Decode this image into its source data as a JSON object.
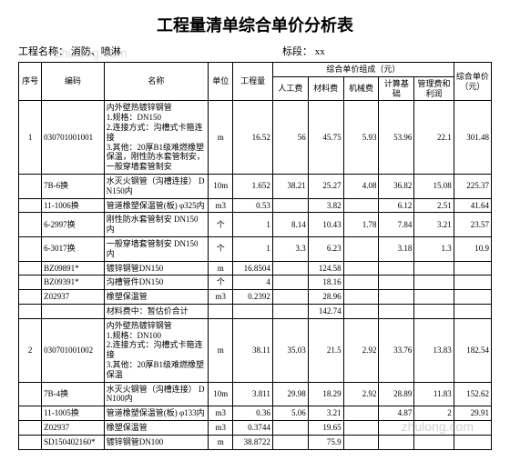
{
  "title": "工程量清单综合单价分析表",
  "project_label": "工程名称：",
  "project_name": "消防、喷淋",
  "section_label": "标段：",
  "section_value": "xx",
  "columns": {
    "seq": "序号",
    "code": "编码",
    "name": "名称",
    "unit": "单位",
    "qty": "工程量",
    "group": "综合单价组成（元）",
    "labor": "人工费",
    "material": "材料费",
    "machine": "机械费",
    "calc": "计算基础",
    "mgmt": "管理费和利润",
    "total": "综合单价（元）"
  },
  "rows": [
    {
      "seq": "1",
      "code": "030701001001",
      "name": "内外壁热镀锌钢管\n1.规格：DN150\n2.连接方式：沟槽式卡箍连接\n3.其他：20厚B1级难燃橡塑保温，刚性防水套管制安，一般穿墙套管制安",
      "unit": "m",
      "qty": "16.52",
      "labor": "56",
      "material": "45.75",
      "machine": "5.93",
      "calc": "53.96",
      "mgmt": "22.1",
      "total": "301.48"
    },
    {
      "seq": "",
      "code": "7B-6换",
      "name": "水灭火钢管（沟槽连接） DN150内",
      "unit": "10m",
      "qty": "1.652",
      "labor": "38.21",
      "material": "25.27",
      "machine": "4.08",
      "calc": "36.82",
      "mgmt": "15.08",
      "total": "225.37"
    },
    {
      "seq": "",
      "code": "11-1006换",
      "name": "管道橡塑保温管(板) φ325内",
      "unit": "m3",
      "qty": "0.53",
      "labor": "",
      "material": "3.82",
      "machine": "",
      "calc": "6.12",
      "mgmt": "2.51",
      "total": "41.64"
    },
    {
      "seq": "",
      "code": "6-2997换",
      "name": "刚性防水套管制安 DN150内",
      "unit": "个",
      "qty": "1",
      "labor": "8.14",
      "material": "10.43",
      "machine": "1.78",
      "calc": "7.84",
      "mgmt": "3.21",
      "total": "23.57"
    },
    {
      "seq": "",
      "code": "6-3017换",
      "name": "一般穿墙套管制安 DN150内",
      "unit": "个",
      "qty": "1",
      "labor": "3.3",
      "material": "6.23",
      "machine": "",
      "calc": "3.18",
      "mgmt": "1.3",
      "total": "10.9"
    },
    {
      "seq": "",
      "code": "BZ09891*",
      "name": "镀锌钢管DN150",
      "unit": "m",
      "qty": "16.8504",
      "labor": "",
      "material": "124.58",
      "machine": "",
      "calc": "",
      "mgmt": "",
      "total": ""
    },
    {
      "seq": "",
      "code": "BZ09391*",
      "name": "沟槽管件DN150",
      "unit": "个",
      "qty": "4",
      "labor": "",
      "material": "18.16",
      "machine": "",
      "calc": "",
      "mgmt": "",
      "total": ""
    },
    {
      "seq": "",
      "code": "Z02937",
      "name": "橡塑保温管",
      "unit": "m3",
      "qty": "0.2392",
      "labor": "",
      "material": "28.96",
      "machine": "",
      "calc": "",
      "mgmt": "",
      "total": ""
    },
    {
      "seq": "",
      "code": "",
      "name": "材料费中：暂估价合计",
      "unit": "",
      "qty": "",
      "labor": "",
      "material": "142.74",
      "machine": "",
      "calc": "",
      "mgmt": "",
      "total": ""
    },
    {
      "seq": "2",
      "code": "030701001002",
      "name": "内外壁热镀锌钢管\n1.规格：DN100\n2.连接方式：沟槽式卡箍连接\n3.其他：20厚B1级难燃橡塑保温",
      "unit": "m",
      "qty": "38.11",
      "labor": "35.03",
      "material": "21.5",
      "machine": "2.92",
      "calc": "33.76",
      "mgmt": "13.83",
      "total": "182.54"
    },
    {
      "seq": "",
      "code": "7B-4换",
      "name": "水灭火钢管（沟槽连接） DN100内",
      "unit": "10m",
      "qty": "3.811",
      "labor": "29.98",
      "material": "18.29",
      "machine": "2.92",
      "calc": "28.89",
      "mgmt": "11.83",
      "total": "152.62"
    },
    {
      "seq": "",
      "code": "11-1005换",
      "name": "管道橡塑保温管(板) φ133内",
      "unit": "m3",
      "qty": "0.36",
      "labor": "5.06",
      "material": "3.21",
      "machine": "",
      "calc": "4.87",
      "mgmt": "2",
      "total": "29.91"
    },
    {
      "seq": "",
      "code": "Z02937",
      "name": "橡塑保温管",
      "unit": "m3",
      "qty": "0.3744",
      "labor": "",
      "material": "19.65",
      "machine": "",
      "calc": "",
      "mgmt": "",
      "total": ""
    },
    {
      "seq": "",
      "code": "SD150402160*",
      "name": "镀锌钢管DN100",
      "unit": "m",
      "qty": "38.8722",
      "labor": "",
      "material": "75.9",
      "machine": "",
      "calc": "",
      "mgmt": "",
      "total": ""
    }
  ],
  "col_widths": [
    "22",
    "60",
    "100",
    "24",
    "38",
    "34",
    "34",
    "34",
    "34",
    "38",
    "36"
  ],
  "watermark": "zhulong.com"
}
